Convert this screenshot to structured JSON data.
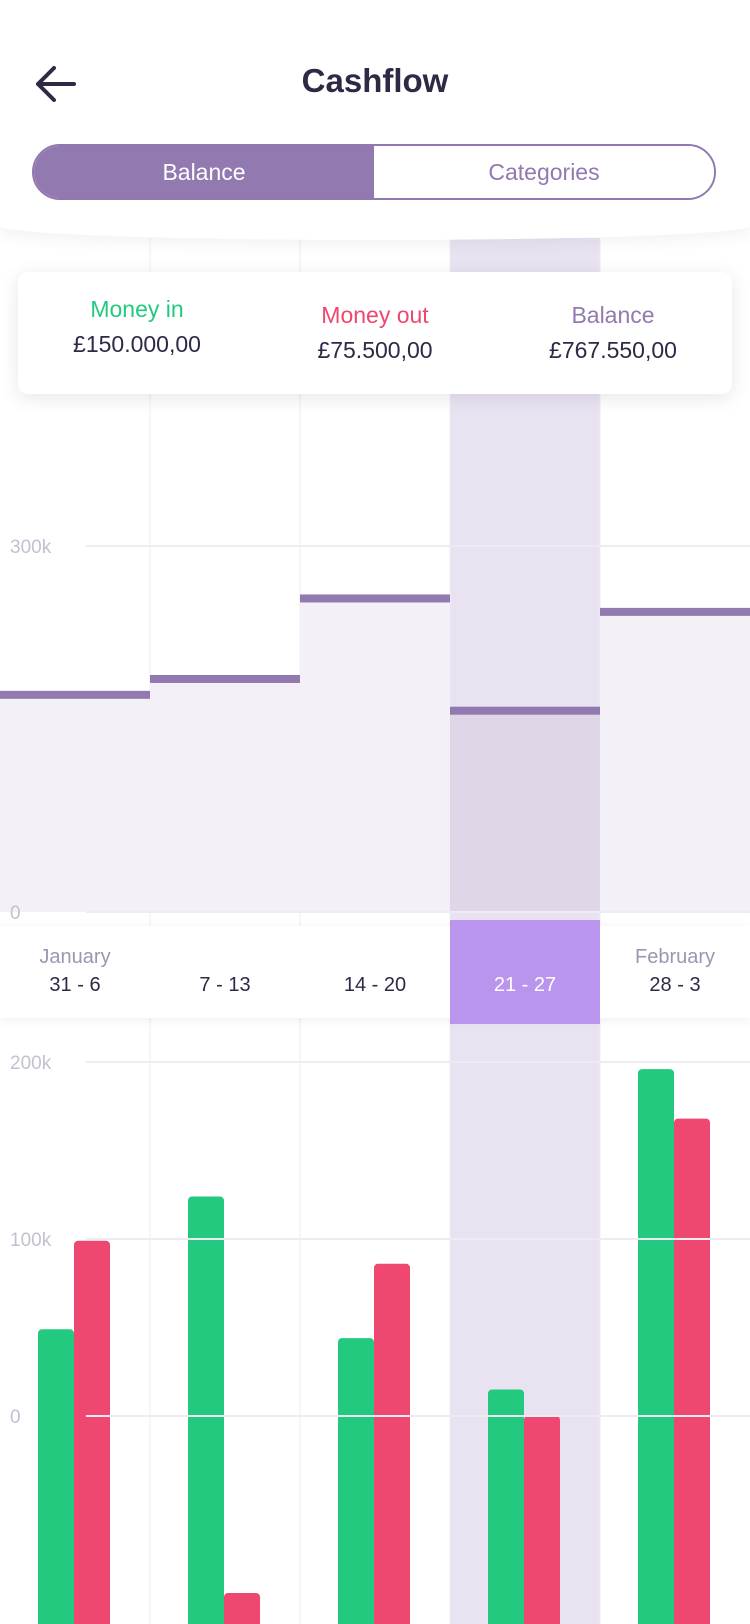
{
  "header": {
    "title": "Cashflow",
    "back_icon": "arrow-left-icon"
  },
  "tabs": [
    {
      "label": "Balance",
      "active": true
    },
    {
      "label": "Categories",
      "active": false
    }
  ],
  "summary": {
    "money_in": {
      "label": "Money in",
      "value": "£150.000,00",
      "color": "#23c97e"
    },
    "money_out": {
      "label": "Money out",
      "value": "£75.500,00",
      "color": "#ee4870"
    },
    "balance": {
      "label": "Balance",
      "value": "£767.550,00",
      "color": "#9279b0"
    }
  },
  "weeks": [
    {
      "month": "January",
      "range": "31 - 6"
    },
    {
      "month": "",
      "range": "7 - 13"
    },
    {
      "month": "",
      "range": "14 - 20"
    },
    {
      "month": "",
      "range": "21 - 27",
      "selected": true
    },
    {
      "month": "February",
      "range": "28 - 3"
    }
  ],
  "colors": {
    "accent": "#9279b0",
    "money_in": "#23c97e",
    "money_out": "#ee4870",
    "selected_week": "#b995ee"
  },
  "chart_data": [
    {
      "type": "bar",
      "categories": [
        "31 - 6",
        "7 - 13",
        "14 - 20",
        "21 - 27",
        "28 - 3"
      ],
      "series": [
        {
          "values": [
            178000,
            191000,
            257000,
            165000,
            246000
          ]
        }
      ],
      "ytick_labels": [
        "0",
        "300k"
      ],
      "ylim": [
        0,
        300000
      ],
      "grid": true
    },
    {
      "type": "bar",
      "categories": [
        "31 - 6",
        "7 - 13",
        "14 - 20",
        "21 - 27",
        "28 - 3"
      ],
      "series": [
        {
          "color": "#23c97e",
          "values": [
            49000,
            124000,
            44000,
            15000,
            196000
          ]
        },
        {
          "color": "#ee4870",
          "values": [
            99000,
            -100000,
            86000,
            0,
            168000
          ]
        }
      ],
      "ytick_labels": [
        "0",
        "100k",
        "200k"
      ],
      "ylim": [
        -120000,
        200000
      ],
      "grid": true
    }
  ]
}
